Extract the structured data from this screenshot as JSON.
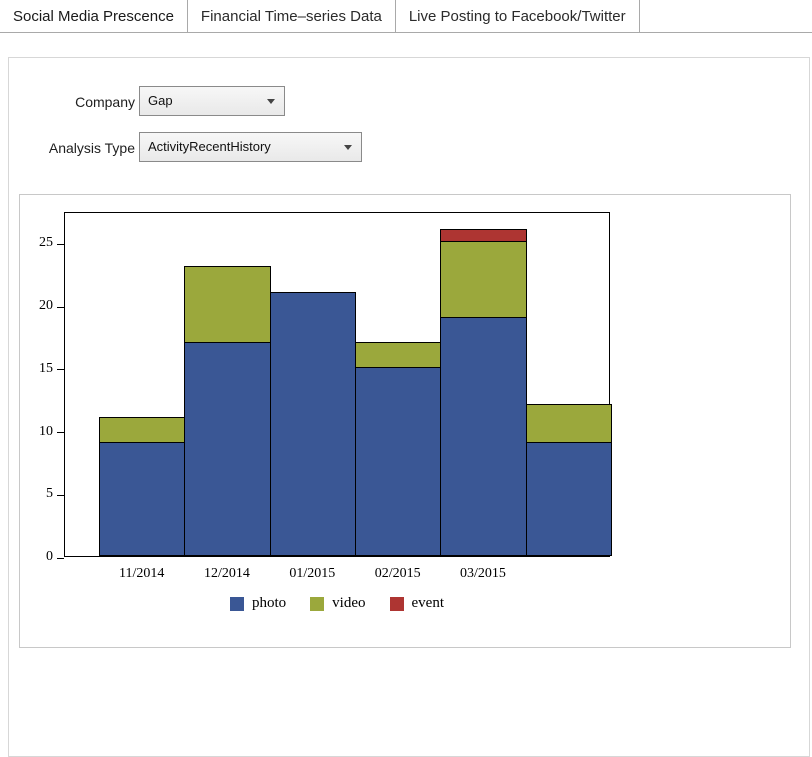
{
  "tabs": [
    {
      "label": "Social Media Prescence",
      "active": true
    },
    {
      "label": "Financial Time–series Data",
      "active": false
    },
    {
      "label": "Live Posting to Facebook/Twitter",
      "active": false
    }
  ],
  "controls": {
    "company": {
      "label": "Company",
      "value": "Gap"
    },
    "analysis_type": {
      "label": "Analysis Type",
      "value": "ActivityRecentHistory"
    }
  },
  "chart_data": {
    "type": "bar",
    "stacked": true,
    "title": "",
    "categories": [
      "11/2014",
      "12/2014",
      "01/2015",
      "02/2015",
      "03/2015",
      ""
    ],
    "series": [
      {
        "name": "photo",
        "color": "#3A5795",
        "values": [
          9,
          17,
          21,
          15,
          19,
          9
        ]
      },
      {
        "name": "video",
        "color": "#9BA83C",
        "values": [
          2,
          6,
          0,
          2,
          6,
          3
        ]
      },
      {
        "name": "event",
        "color": "#AE3532",
        "values": [
          0,
          0,
          0,
          0,
          1,
          0
        ]
      }
    ],
    "ylim": [
      0,
      27.5
    ],
    "yticks": [
      0,
      5,
      10,
      15,
      20,
      25
    ],
    "grid": false,
    "legend_position": "bottom"
  }
}
